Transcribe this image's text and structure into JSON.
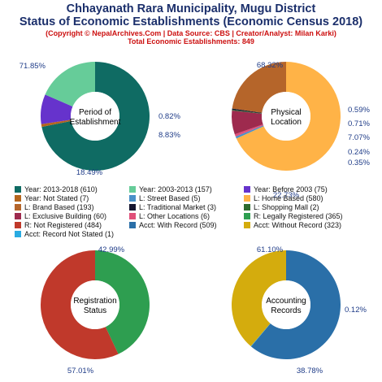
{
  "header": {
    "title_line1": "Chhayanath Rara Municipality, Mugu District",
    "title_line2": "Status of Economic Establishments (Economic Census 2018)",
    "copyright": "(Copyright © NepalArchives.Com | Data Source: CBS | Creator/Analyst: Milan Karki)",
    "total": "Total Economic Establishments: 849"
  },
  "legend": [
    {
      "label": "Year: 2013-2018 (610)",
      "color": "#0f6b63"
    },
    {
      "label": "Year: 2003-2013 (157)",
      "color": "#66cc99"
    },
    {
      "label": "Year: Before 2003 (75)",
      "color": "#6633cc"
    },
    {
      "label": "Year: Not Stated (7)",
      "color": "#b5651d"
    },
    {
      "label": "L: Street Based (5)",
      "color": "#4a90c8"
    },
    {
      "label": "L: Home Based (580)",
      "color": "#ffb347"
    },
    {
      "label": "L: Brand Based (193)",
      "color": "#b5652a"
    },
    {
      "label": "L: Traditional Market (3)",
      "color": "#151530"
    },
    {
      "label": "L: Shopping Mall (2)",
      "color": "#2e6b2e"
    },
    {
      "label": "L: Exclusive Building (60)",
      "color": "#9e2a4e"
    },
    {
      "label": "L: Other Locations (6)",
      "color": "#e0507a"
    },
    {
      "label": "R: Legally Registered (365)",
      "color": "#2e9e50"
    },
    {
      "label": "R: Not Registered (484)",
      "color": "#c0392b"
    },
    {
      "label": "Acct: With Record (509)",
      "color": "#2a6fa8"
    },
    {
      "label": "Acct: Without Record (323)",
      "color": "#d4ac0d"
    },
    {
      "label": "Acct: Record Not Stated (1)",
      "color": "#29abe2"
    }
  ],
  "chart_data": [
    {
      "type": "pie",
      "center_label": [
        "Period of",
        "Establishment"
      ],
      "slices": [
        {
          "name": "Year: 2013-2018",
          "value": 610,
          "color": "#0f6b63"
        },
        {
          "name": "Year: Not Stated",
          "value": 7,
          "color": "#b5651d"
        },
        {
          "name": "Year: Before 2003",
          "value": 75,
          "color": "#6633cc"
        },
        {
          "name": "Year: 2003-2013",
          "value": 157,
          "color": "#66cc99"
        }
      ],
      "labels": [
        "71.85%",
        "0.82%",
        "8.83%",
        "18.49%"
      ]
    },
    {
      "type": "pie",
      "center_label": [
        "Physical",
        "Location"
      ],
      "slices": [
        {
          "name": "L: Home Based",
          "value": 580,
          "color": "#ffb347"
        },
        {
          "name": "L: Street Based",
          "value": 5,
          "color": "#4a90c8"
        },
        {
          "name": "L: Other Locations",
          "value": 6,
          "color": "#e0507a"
        },
        {
          "name": "L: Exclusive Building",
          "value": 60,
          "color": "#9e2a4e"
        },
        {
          "name": "L: Shopping Mall",
          "value": 2,
          "color": "#2e6b2e"
        },
        {
          "name": "L: Traditional Market",
          "value": 3,
          "color": "#151530"
        },
        {
          "name": "L: Brand Based",
          "value": 193,
          "color": "#b5652a"
        }
      ],
      "labels": [
        "68.32%",
        "0.59%",
        "0.71%",
        "7.07%",
        "0.24%",
        "0.35%",
        "22.73%"
      ]
    },
    {
      "type": "pie",
      "center_label": [
        "Registration",
        "Status"
      ],
      "slices": [
        {
          "name": "R: Legally Registered",
          "value": 365,
          "color": "#2e9e50"
        },
        {
          "name": "R: Not Registered",
          "value": 484,
          "color": "#c0392b"
        }
      ],
      "labels": [
        "42.99%",
        "57.01%"
      ]
    },
    {
      "type": "pie",
      "center_label": [
        "Accounting",
        "Records"
      ],
      "slices": [
        {
          "name": "Acct: With Record",
          "value": 509,
          "color": "#2a6fa8"
        },
        {
          "name": "Acct: Record Not Stated",
          "value": 1,
          "color": "#29abe2"
        },
        {
          "name": "Acct: Without Record",
          "value": 323,
          "color": "#d4ac0d"
        }
      ],
      "labels": [
        "61.10%",
        "0.12%",
        "38.78%"
      ]
    }
  ]
}
